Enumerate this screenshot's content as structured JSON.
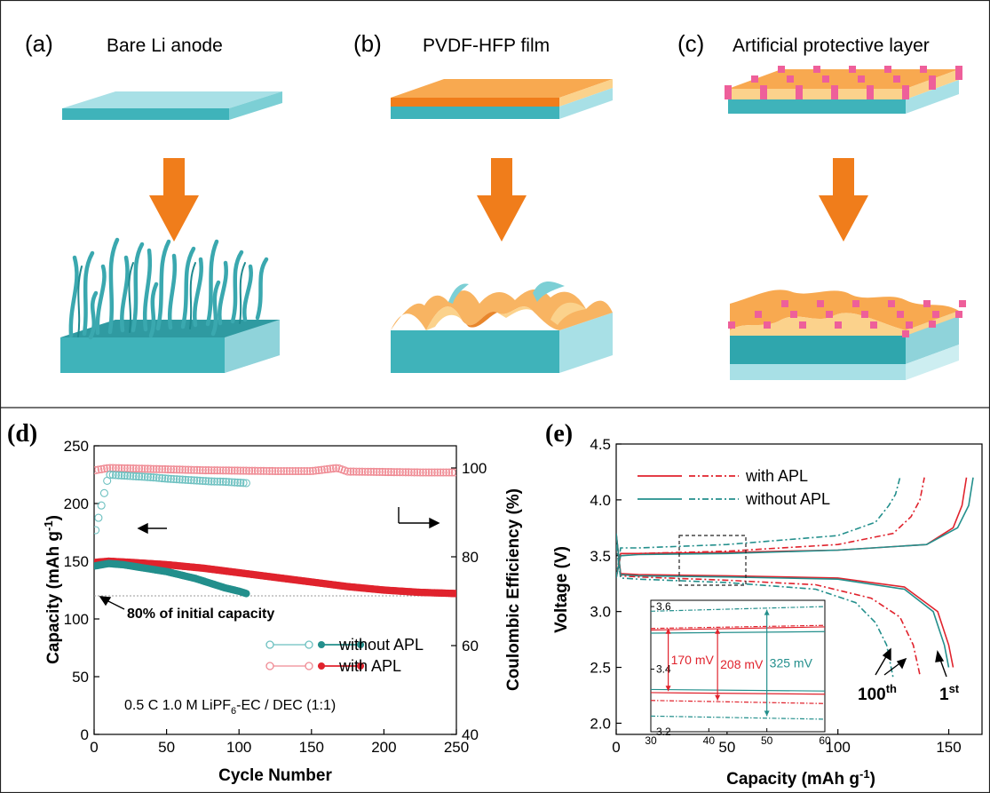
{
  "schematic": {
    "panels": [
      {
        "label": "(a)",
        "title": "Bare Li anode"
      },
      {
        "label": "(b)",
        "title": "PVDF-HFP film"
      },
      {
        "label": "(c)",
        "title": "Artificial protective layer"
      }
    ],
    "colors": {
      "li": "#9fdbe2",
      "li_side": "#46b6bd",
      "li_dark": "#2a9aa2",
      "film": "#f6a04a",
      "film_light": "#fbd28c",
      "dot": "#ee5f9a",
      "arrow": "#f07d1b"
    }
  },
  "chart_data": [
    {
      "panel": "(d)",
      "type": "scatter",
      "xlabel": "Cycle Number",
      "ylabel": "Capacity (mAh g",
      "ylabel_sup": "-1",
      "ylabel_end": ")",
      "y2label": "Coulombic Efficiency (%)",
      "xlim": [
        0,
        250
      ],
      "ylim": [
        0,
        250
      ],
      "y2lim": [
        40,
        105
      ],
      "xticks": [
        "0",
        "50",
        "100",
        "150",
        "200",
        "250"
      ],
      "yticks": [
        "0",
        "50",
        "100",
        "150",
        "200",
        "250"
      ],
      "y2ticks": [
        "40",
        "60",
        "80",
        "100"
      ],
      "reference_capacity": 120,
      "annotation": "80% of initial capacity",
      "condition_parts": [
        "0.5 C  1.0 M LiPF",
        "6",
        "-EC / DEC (1:1)"
      ],
      "legend": [
        "without APL",
        "with APL"
      ],
      "series": [
        {
          "name": "without APL",
          "axis": "capacity",
          "color": "#238f8c",
          "x": [
            1,
            10,
            20,
            30,
            40,
            50,
            60,
            70,
            80,
            90,
            100,
            105
          ],
          "y": [
            146,
            148,
            147,
            145,
            143,
            141,
            138,
            135,
            131,
            127,
            124,
            122
          ]
        },
        {
          "name": "with APL",
          "axis": "capacity",
          "color": "#e0232d",
          "x": [
            1,
            10,
            25,
            50,
            75,
            100,
            125,
            150,
            175,
            200,
            225,
            250
          ],
          "y": [
            149,
            150,
            149,
            147,
            144,
            140,
            136,
            132,
            128,
            125,
            123,
            122
          ]
        },
        {
          "name": "without APL",
          "axis": "efficiency",
          "color": "#6cc0c0",
          "x": [
            1,
            10,
            20,
            30,
            40,
            50,
            60,
            70,
            80,
            90,
            100,
            105
          ],
          "y": [
            86,
            98.5,
            98.3,
            98.1,
            97.9,
            97.6,
            97.4,
            97.2,
            97,
            96.9,
            96.7,
            96.6
          ]
        },
        {
          "name": "with APL",
          "axis": "efficiency",
          "color": "#ef8a93",
          "x": [
            1,
            10,
            25,
            50,
            75,
            100,
            125,
            150,
            168,
            175,
            200,
            225,
            250
          ],
          "y": [
            99.5,
            100,
            99.9,
            99.7,
            99.5,
            99.4,
            99.3,
            99.3,
            100,
            99.2,
            99.1,
            99,
            99
          ]
        }
      ]
    },
    {
      "panel": "(e)",
      "type": "line",
      "xlabel": "Capacity (mAh g",
      "xlabel_sup": "-1",
      "xlabel_end": ")",
      "ylabel": "Voltage (V)",
      "xlim": [
        0,
        165
      ],
      "ylim": [
        1.9,
        4.5
      ],
      "xticks": [
        "0",
        "50",
        "100",
        "150"
      ],
      "yticks": [
        "2.0",
        "2.5",
        "3.0",
        "3.5",
        "4.0",
        "4.5"
      ],
      "legend": [
        "with APL",
        "without APL"
      ],
      "cycle_labels": [
        {
          "text": "100",
          "sup": "th"
        },
        {
          "text": "1",
          "sup": "st"
        }
      ],
      "series": [
        {
          "name": "with APL",
          "cycle": "1st",
          "color": "#e0232d",
          "dash": false,
          "charge": {
            "x": [
              0,
              2,
              10,
              50,
              100,
              140,
              152,
              156,
              158
            ],
            "y": [
              3.3,
              3.52,
              3.52,
              3.53,
              3.55,
              3.6,
              3.75,
              3.95,
              4.2
            ]
          },
          "discharge": {
            "x": [
              0,
              2,
              10,
              50,
              100,
              130,
              145,
              150,
              152
            ],
            "y": [
              3.7,
              3.34,
              3.33,
              3.32,
              3.3,
              3.22,
              3.0,
              2.7,
              2.5
            ]
          }
        },
        {
          "name": "without APL",
          "cycle": "1st",
          "color": "#238f8c",
          "dash": false,
          "charge": {
            "x": [
              0,
              2,
              10,
              50,
              100,
              140,
              154,
              159,
              161
            ],
            "y": [
              3.3,
              3.5,
              3.51,
              3.52,
              3.55,
              3.6,
              3.75,
              3.95,
              4.2
            ]
          },
          "discharge": {
            "x": [
              0,
              2,
              10,
              50,
              100,
              130,
              143,
              148,
              150
            ],
            "y": [
              3.7,
              3.33,
              3.32,
              3.31,
              3.29,
              3.2,
              3.0,
              2.7,
              2.5
            ]
          }
        },
        {
          "name": "with APL",
          "cycle": "100th",
          "color": "#e0232d",
          "dash": true,
          "charge": {
            "x": [
              0,
              2,
              10,
              50,
              100,
              125,
              133,
              137,
              139
            ],
            "y": [
              3.3,
              3.52,
              3.52,
              3.54,
              3.6,
              3.7,
              3.85,
              4.0,
              4.2
            ]
          },
          "discharge": {
            "x": [
              0,
              2,
              10,
              50,
              90,
              115,
              128,
              134,
              137
            ],
            "y": [
              3.6,
              3.32,
              3.31,
              3.28,
              3.24,
              3.12,
              2.95,
              2.7,
              2.43
            ]
          }
        },
        {
          "name": "without APL",
          "cycle": "100th",
          "color": "#238f8c",
          "dash": true,
          "charge": {
            "x": [
              0,
              2,
              10,
              50,
              100,
              117,
              123,
              126,
              128
            ],
            "y": [
              3.3,
              3.57,
              3.57,
              3.6,
              3.68,
              3.8,
              3.95,
              4.05,
              4.2
            ]
          },
          "discharge": {
            "x": [
              0,
              2,
              10,
              50,
              90,
              108,
              117,
              122,
              125
            ],
            "y": [
              3.6,
              3.3,
              3.29,
              3.26,
              3.2,
              3.08,
              2.9,
              2.7,
              2.4
            ]
          }
        }
      ],
      "inset": {
        "xlim": [
          30,
          60
        ],
        "ylim": [
          3.2,
          3.62
        ],
        "xticks": [
          "30",
          "40",
          "50",
          "60"
        ],
        "yticks": [
          "3.2",
          "3.4",
          "3.6"
        ],
        "lines": [
          {
            "color": "#238f8c",
            "dash": true,
            "y": [
              3.585,
              3.6
            ]
          },
          {
            "color": "#e0232d",
            "dash": true,
            "y": [
              3.53,
              3.54
            ]
          },
          {
            "color": "#e0232d",
            "dash": false,
            "y": [
              3.525,
              3.535
            ]
          },
          {
            "color": "#238f8c",
            "dash": false,
            "y": [
              3.515,
              3.52
            ]
          },
          {
            "color": "#238f8c",
            "dash": false,
            "y": [
              3.335,
              3.33
            ]
          },
          {
            "color": "#e0232d",
            "dash": false,
            "y": [
              3.325,
              3.32
            ]
          },
          {
            "color": "#e0232d",
            "dash": true,
            "y": [
              3.3,
              3.29
            ]
          },
          {
            "color": "#238f8c",
            "dash": true,
            "y": [
              3.25,
              3.24
            ]
          }
        ],
        "gaps": [
          {
            "label": "170 mV",
            "x": 33,
            "y": [
              3.33,
              3.53
            ],
            "color": "#e0232d"
          },
          {
            "label": "208 mV",
            "x": 41.5,
            "y": [
              3.3,
              3.53
            ],
            "color": "#e0232d"
          },
          {
            "label": "325 mV",
            "x": 50,
            "y": [
              3.25,
              3.59
            ],
            "color": "#238f8c"
          }
        ]
      }
    }
  ]
}
